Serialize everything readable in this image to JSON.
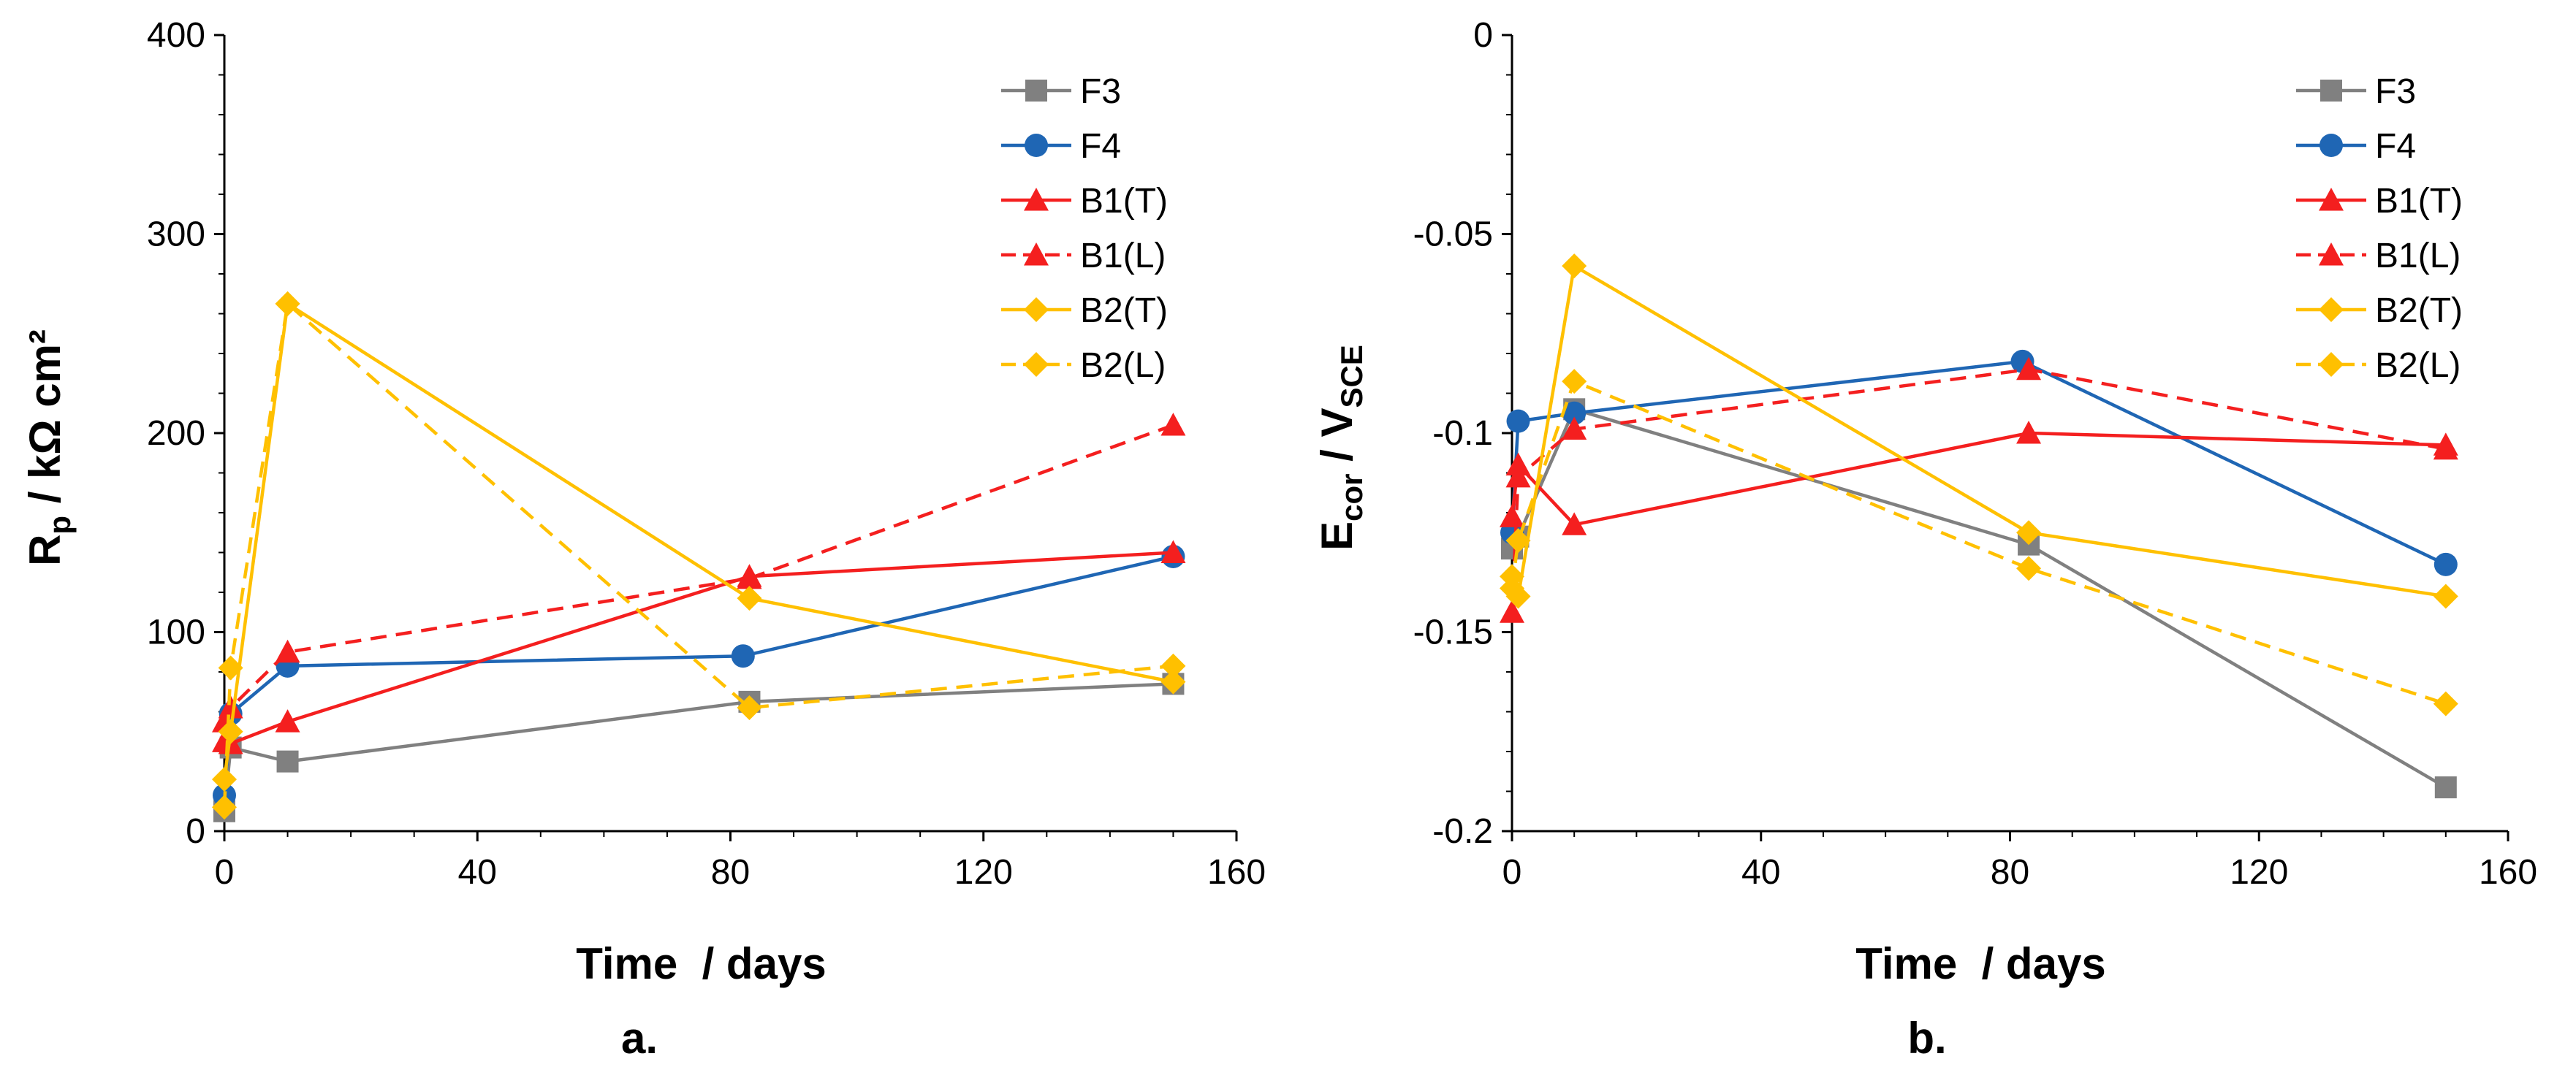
{
  "chart_data": [
    {
      "type": "line",
      "caption": "a.",
      "xlabel": "Time  / days",
      "ylabel_main": "R",
      "ylabel_sub": "p",
      "ylabel_rest": " / kΩ cm²",
      "xlim": [
        0,
        160
      ],
      "ylim": [
        0,
        400
      ],
      "xticks": [
        0,
        40,
        80,
        120,
        160
      ],
      "yticks": [
        0,
        100,
        200,
        300,
        400
      ],
      "ytick_labels": [
        "0",
        "100",
        "200",
        "300",
        "400"
      ],
      "legend_position": "top-right",
      "grid": false,
      "series": [
        {
          "name": "F3",
          "color": "#808080",
          "marker": "square",
          "dashed": false,
          "x": [
            0,
            1,
            10,
            83,
            150
          ],
          "y": [
            10,
            42,
            35,
            65,
            74
          ]
        },
        {
          "name": "F4",
          "color": "#1f66b4",
          "marker": "circle",
          "dashed": false,
          "x": [
            0,
            1,
            10,
            82,
            150
          ],
          "y": [
            18,
            59,
            83,
            88,
            138
          ]
        },
        {
          "name": "B1(T)",
          "color": "#f41f1f",
          "marker": "triangle",
          "dashed": false,
          "x": [
            0,
            1,
            10,
            83,
            150
          ],
          "y": [
            45,
            44,
            55,
            128,
            140
          ]
        },
        {
          "name": "B1(L)",
          "color": "#f41f1f",
          "marker": "triangle",
          "dashed": true,
          "x": [
            0,
            1,
            10,
            83,
            150
          ],
          "y": [
            55,
            62,
            90,
            127,
            204
          ]
        },
        {
          "name": "B2(T)",
          "color": "#ffc000",
          "marker": "diamond",
          "dashed": false,
          "x": [
            0,
            1,
            10,
            83,
            150
          ],
          "y": [
            26,
            50,
            265,
            117,
            75
          ]
        },
        {
          "name": "B2(L)",
          "color": "#ffc000",
          "marker": "diamond",
          "dashed": true,
          "x": [
            0,
            1,
            10,
            83,
            150
          ],
          "y": [
            12,
            82,
            265,
            62,
            83
          ]
        }
      ]
    },
    {
      "type": "line",
      "caption": "b.",
      "xlabel": "Time  / days",
      "ylabel_main": "E",
      "ylabel_sub": "cor",
      "ylabel_rest": " / V",
      "ylabel_sub2": "SCE",
      "xlim": [
        0,
        160
      ],
      "ylim": [
        -0.2,
        0
      ],
      "xticks": [
        0,
        40,
        80,
        120,
        160
      ],
      "yticks": [
        0,
        -0.05,
        -0.1,
        -0.15,
        -0.2
      ],
      "ytick_labels": [
        "0",
        "-0.05",
        "-0.1",
        "-0.15",
        "-0.2"
      ],
      "legend_position": "top-right",
      "grid": false,
      "series": [
        {
          "name": "F3",
          "color": "#808080",
          "marker": "square",
          "dashed": false,
          "x": [
            0,
            1,
            10,
            83,
            150
          ],
          "y": [
            -0.129,
            -0.126,
            -0.094,
            -0.128,
            -0.189
          ]
        },
        {
          "name": "F4",
          "color": "#1f66b4",
          "marker": "circle",
          "dashed": false,
          "x": [
            0,
            1,
            10,
            82,
            150
          ],
          "y": [
            -0.125,
            -0.097,
            -0.095,
            -0.082,
            -0.133
          ]
        },
        {
          "name": "B1(T)",
          "color": "#f41f1f",
          "marker": "triangle",
          "dashed": false,
          "x": [
            0,
            1,
            10,
            83,
            150
          ],
          "y": [
            -0.121,
            -0.108,
            -0.123,
            -0.1,
            -0.103
          ]
        },
        {
          "name": "B1(L)",
          "color": "#f41f1f",
          "marker": "triangle",
          "dashed": true,
          "x": [
            0,
            1,
            10,
            83,
            150
          ],
          "y": [
            -0.145,
            -0.111,
            -0.099,
            -0.084,
            -0.104
          ]
        },
        {
          "name": "B2(T)",
          "color": "#ffc000",
          "marker": "diamond",
          "dashed": false,
          "x": [
            0,
            1,
            10,
            83,
            150
          ],
          "y": [
            -0.136,
            -0.141,
            -0.058,
            -0.125,
            -0.141
          ]
        },
        {
          "name": "B2(L)",
          "color": "#ffc000",
          "marker": "diamond",
          "dashed": true,
          "x": [
            0,
            1,
            10,
            83,
            150
          ],
          "y": [
            -0.139,
            -0.127,
            -0.087,
            -0.134,
            -0.168
          ]
        }
      ]
    }
  ]
}
